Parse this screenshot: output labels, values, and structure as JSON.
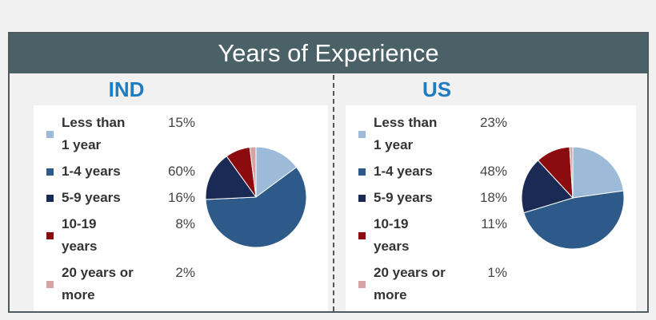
{
  "header": {
    "title": "Years of Experience"
  },
  "chart_data": [
    {
      "type": "pie",
      "title": "IND",
      "categories": [
        "Less than 1 year",
        "1-4 years",
        "5-9 years",
        "10-19 years",
        "20 years or more"
      ],
      "values": [
        15,
        60,
        16,
        8,
        2
      ],
      "value_labels": [
        "15%",
        "60%",
        "16%",
        "8%",
        "2%"
      ],
      "colors": [
        "#9dbad8",
        "#2e5a8a",
        "#1b2a54",
        "#8c0b0e",
        "#d8a3a3"
      ]
    },
    {
      "type": "pie",
      "title": "US",
      "categories": [
        "Less than 1 year",
        "1-4 years",
        "5-9 years",
        "10-19 years",
        "20 years or more"
      ],
      "values": [
        23,
        48,
        18,
        11,
        1
      ],
      "value_labels": [
        "23%",
        "48%",
        "18%",
        "11%",
        "1%"
      ],
      "colors": [
        "#9dbad8",
        "#2e5a8a",
        "#1b2a54",
        "#8c0b0e",
        "#d8a3a3"
      ]
    }
  ]
}
